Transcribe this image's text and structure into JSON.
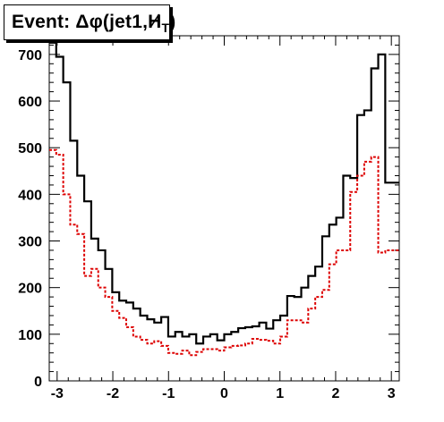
{
  "chart_data": {
    "type": "histogram",
    "title": "Event: Δφ(jet1,H̸T)",
    "title_parts": {
      "prefix": "Event: Δφ(jet1,",
      "ht_letter": "H",
      "ht_sub": "T",
      "suffix": ")"
    },
    "xlabel": "",
    "ylabel": "",
    "xlim": [
      -3.1416,
      3.1416
    ],
    "ylim": [
      0,
      740
    ],
    "xticks": [
      -3,
      -2,
      -1,
      0,
      1,
      2,
      3
    ],
    "yticks": [
      0,
      100,
      200,
      300,
      400,
      500,
      600,
      700
    ],
    "bin_edges_range": [
      -3.1416,
      3.1416
    ],
    "n_bins": 50,
    "series": [
      {
        "style": "solid",
        "color": "#000000",
        "values": [
          725,
          695,
          640,
          515,
          440,
          385,
          305,
          280,
          240,
          190,
          172,
          168,
          155,
          140,
          132,
          125,
          137,
          95,
          105,
          95,
          100,
          80,
          95,
          100,
          87,
          100,
          105,
          113,
          115,
          117,
          125,
          112,
          130,
          140,
          182,
          180,
          200,
          225,
          245,
          310,
          335,
          350,
          440,
          435,
          570,
          580,
          670,
          700,
          425,
          425
        ]
      },
      {
        "style": "dotted",
        "color": "#dd0000",
        "values": [
          495,
          485,
          400,
          335,
          315,
          225,
          240,
          200,
          180,
          150,
          135,
          115,
          95,
          88,
          80,
          85,
          75,
          60,
          58,
          65,
          55,
          62,
          68,
          68,
          65,
          72,
          75,
          76,
          80,
          90,
          88,
          86,
          80,
          95,
          130,
          130,
          125,
          155,
          180,
          195,
          250,
          280,
          280,
          405,
          440,
          470,
          480,
          275,
          280,
          280
        ]
      }
    ],
    "grid": false,
    "legend": "none"
  }
}
